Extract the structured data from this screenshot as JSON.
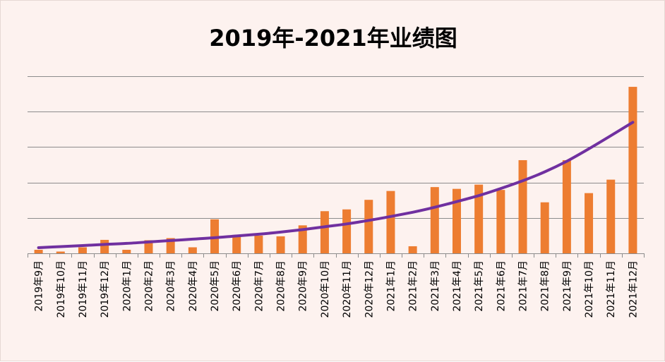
{
  "chart_data": {
    "type": "bar",
    "title": "2019年-2021年业绩图",
    "categories": [
      "2019年9月",
      "2019年10月",
      "2019年11月",
      "2019年12月",
      "2020年1月",
      "2020年2月",
      "2020年3月",
      "2020年4月",
      "2020年5月",
      "2020年6月",
      "2020年7月",
      "2020年8月",
      "2020年9月",
      "2020年10月",
      "2020年11月",
      "2020年12月",
      "2021年1月",
      "2021年2月",
      "2021年3月",
      "2021年4月",
      "2021年5月",
      "2021年6月",
      "2021年7月",
      "2021年8月",
      "2021年9月",
      "2021年10月",
      "2021年11月",
      "2021年12月"
    ],
    "values": [
      0.1,
      0.05,
      0.17,
      0.38,
      0.1,
      0.37,
      0.43,
      0.17,
      0.96,
      0.47,
      0.5,
      0.48,
      0.79,
      1.19,
      1.24,
      1.51,
      1.76,
      0.2,
      1.87,
      1.82,
      1.94,
      1.79,
      2.63,
      1.44,
      2.63,
      1.7,
      2.08,
      4.7
    ],
    "trendline": {
      "type": "exponential",
      "values": [
        0.16,
        0.19,
        0.22,
        0.25,
        0.28,
        0.32,
        0.36,
        0.4,
        0.44,
        0.49,
        0.54,
        0.6,
        0.67,
        0.75,
        0.83,
        0.93,
        1.04,
        1.16,
        1.3,
        1.46,
        1.63,
        1.83,
        2.05,
        2.3,
        2.6,
        2.95,
        3.32,
        3.7
      ]
    },
    "ylim": [
      0,
      5
    ],
    "y_gridlines": [
      0,
      1,
      2,
      3,
      4,
      5
    ],
    "grid": true,
    "legend": "none",
    "colors": {
      "bar": "#ed7d31",
      "trendline": "#7030a0",
      "gridline": "#8c8c8c",
      "axis": "#8c8c8c",
      "background": "#fdf2ef"
    }
  }
}
